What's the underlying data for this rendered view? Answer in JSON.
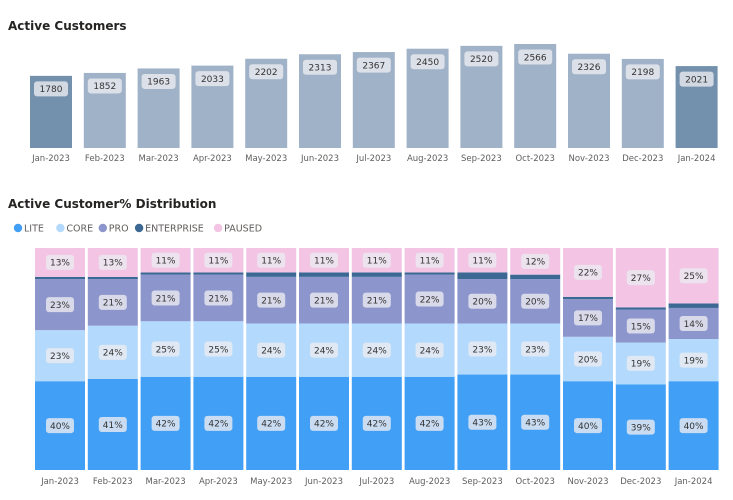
{
  "chart_data": [
    {
      "type": "bar",
      "title": "Active Customers",
      "categories": [
        "Jan-2023",
        "Feb-2023",
        "Mar-2023",
        "Apr-2023",
        "May-2023",
        "Jun-2023",
        "Jul-2023",
        "Aug-2023",
        "Sep-2023",
        "Oct-2023",
        "Nov-2023",
        "Dec-2023",
        "Jan-2024"
      ],
      "values": [
        1780,
        1852,
        1963,
        2033,
        2202,
        2313,
        2367,
        2450,
        2520,
        2566,
        2326,
        2198,
        2021
      ],
      "ylim": [
        0,
        2566
      ],
      "colors": {
        "default": "#9fb2c8",
        "highlight": "#7391ad"
      },
      "highlighted": [
        "Jan-2023",
        "Jan-2024"
      ],
      "grid": false
    },
    {
      "type": "bar",
      "stacked": true,
      "title": "Active Customer% Distribution",
      "legend_position": "top-left",
      "categories": [
        "Jan-2023",
        "Feb-2023",
        "Mar-2023",
        "Apr-2023",
        "May-2023",
        "Jun-2023",
        "Jul-2023",
        "Aug-2023",
        "Sep-2023",
        "Oct-2023",
        "Nov-2023",
        "Dec-2023",
        "Jan-2024"
      ],
      "series": [
        {
          "name": "LITE",
          "color": "#41a0f5",
          "values": [
            40,
            41,
            42,
            42,
            42,
            42,
            42,
            42,
            43,
            43,
            40,
            39,
            40
          ],
          "labeled": true
        },
        {
          "name": "CORE",
          "color": "#b3dafc",
          "values": [
            23,
            24,
            25,
            25,
            24,
            24,
            24,
            24,
            23,
            23,
            20,
            19,
            19
          ],
          "labeled": true
        },
        {
          "name": "PRO",
          "color": "#8d95cd",
          "values": [
            23,
            21,
            21,
            21,
            21,
            21,
            21,
            22,
            20,
            20,
            17,
            15,
            14
          ],
          "labeled": true
        },
        {
          "name": "ENTERPRISE",
          "color": "#3b6994",
          "values": [
            1,
            1,
            1,
            1,
            2,
            2,
            2,
            1,
            3,
            2,
            1,
            1,
            2
          ],
          "labeled": false
        },
        {
          "name": "PAUSED",
          "color": "#f3c4e4",
          "values": [
            13,
            13,
            11,
            11,
            11,
            11,
            11,
            11,
            11,
            12,
            22,
            27,
            25
          ],
          "labeled": true
        }
      ],
      "ylim": [
        0,
        100
      ],
      "grid": false
    }
  ]
}
